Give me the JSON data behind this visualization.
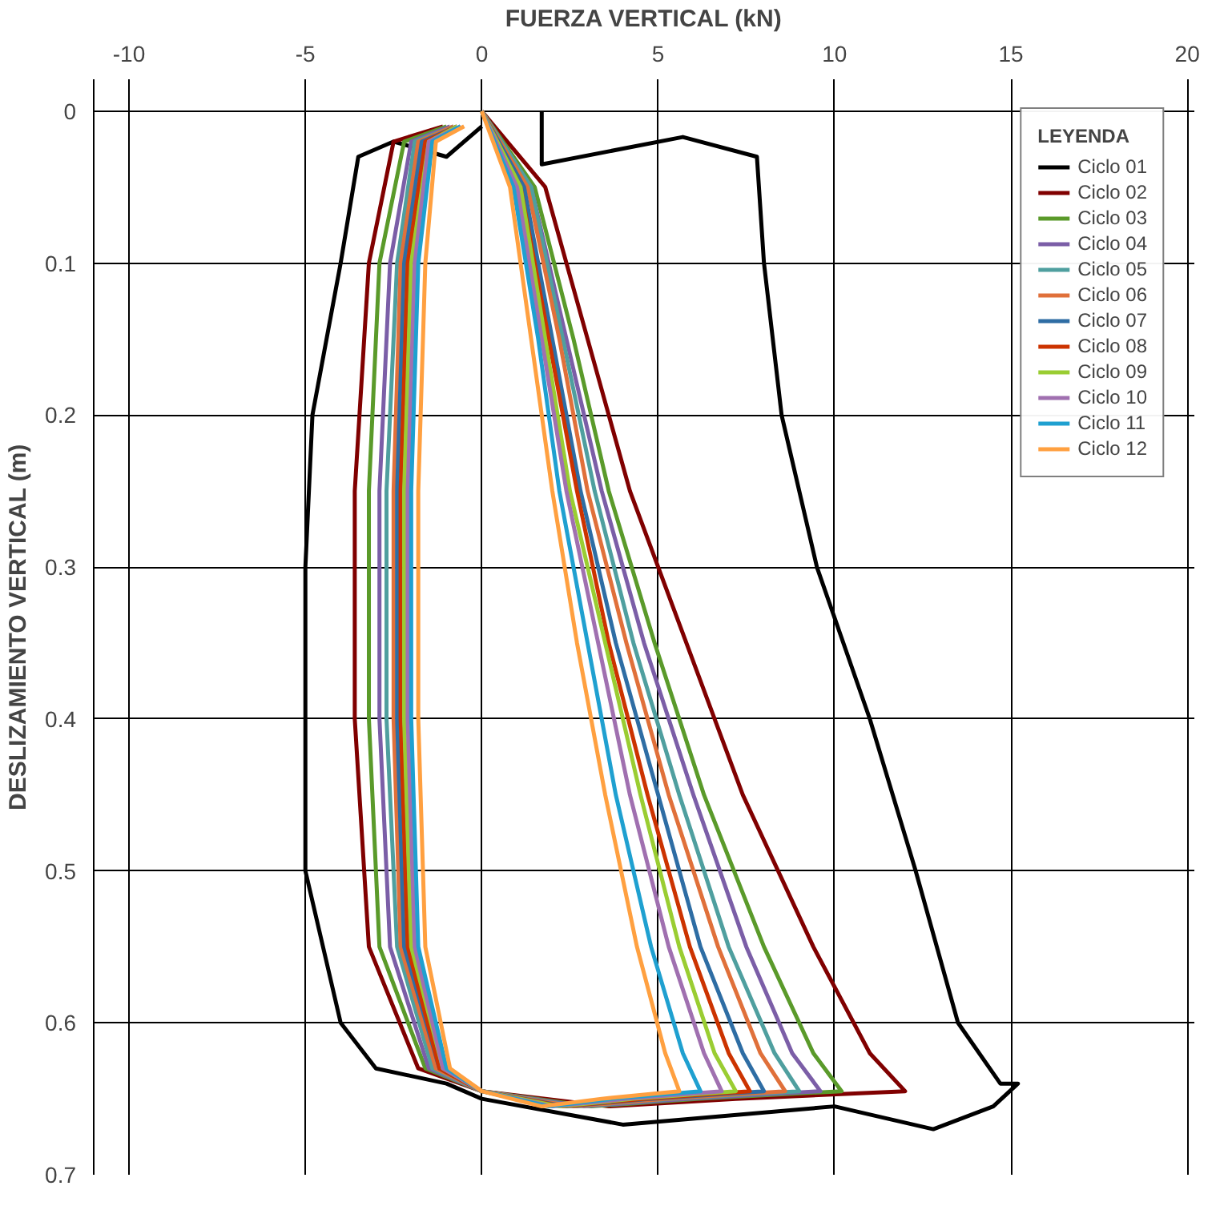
{
  "chart_data": {
    "type": "line",
    "xlabel": "FUERZA VERTICAL (kN)",
    "ylabel": "DESLIZAMIENTO VERTICAL (m)",
    "legend_title": "LEYENDA",
    "xlim": [
      -11,
      20.2
    ],
    "ylim": [
      0.7,
      -0.021
    ],
    "xticks": [
      -10,
      -5,
      0,
      5,
      10,
      15,
      20
    ],
    "yticks": [
      0,
      0.1,
      0.2,
      0.3,
      0.4,
      0.5,
      0.6,
      0.7
    ],
    "grid": true,
    "legend": "top right",
    "line_style": "solid",
    "series": [
      {
        "name": "Ciclo 01",
        "color": "#000000",
        "x": [
          1.7,
          1.7,
          5.7,
          7.8,
          8,
          8.5,
          9.5,
          11,
          12.3,
          13.5,
          14.7,
          15.2,
          14.5,
          12.8,
          10,
          4,
          0,
          -1,
          -3,
          -4,
          -5,
          -5,
          -5,
          -4.8,
          -4,
          -3.5,
          -2.5,
          -1,
          0
        ],
        "values": [
          0,
          0.035,
          0.017,
          0.03,
          0.1,
          0.2,
          0.3,
          0.4,
          0.5,
          0.6,
          0.64,
          0.64,
          0.655,
          0.67,
          0.655,
          0.667,
          0.65,
          0.64,
          0.63,
          0.6,
          0.5,
          0.4,
          0.3,
          0.2,
          0.1,
          0.03,
          0.02,
          0.03,
          0.01
        ]
      },
      {
        "name": "Ciclo 02",
        "color": "#800000",
        "x": [
          0,
          1.8,
          3,
          4.2,
          5.8,
          7.4,
          9.4,
          11,
          12,
          7.2,
          3.6,
          0,
          -1.8,
          -3.2,
          -3.6,
          -3.6,
          -3.2,
          -2.5,
          -1.1
        ],
        "values": [
          0,
          0.05,
          0.15,
          0.25,
          0.35,
          0.45,
          0.55,
          0.62,
          0.645,
          0.65,
          0.655,
          0.645,
          0.63,
          0.55,
          0.4,
          0.25,
          0.1,
          0.02,
          0.01
        ]
      },
      {
        "name": "Ciclo 03",
        "color": "#5a9a2a",
        "x": [
          0,
          1.5,
          2.6,
          3.6,
          4.9,
          6.3,
          8,
          9.4,
          10.2,
          6.1,
          3.1,
          0,
          -1.6,
          -2.9,
          -3.2,
          -3.2,
          -2.9,
          -2.2,
          -1
        ],
        "values": [
          0,
          0.05,
          0.15,
          0.25,
          0.35,
          0.45,
          0.55,
          0.62,
          0.645,
          0.65,
          0.655,
          0.645,
          0.63,
          0.55,
          0.4,
          0.25,
          0.1,
          0.02,
          0.01
        ]
      },
      {
        "name": "Ciclo 04",
        "color": "#7b5ea7",
        "x": [
          0,
          1.4,
          2.4,
          3.4,
          4.6,
          6,
          7.5,
          8.8,
          9.6,
          5.8,
          2.9,
          0,
          -1.5,
          -2.6,
          -2.9,
          -2.9,
          -2.6,
          -2,
          -0.9
        ],
        "values": [
          0,
          0.05,
          0.15,
          0.25,
          0.35,
          0.45,
          0.55,
          0.62,
          0.645,
          0.65,
          0.655,
          0.645,
          0.63,
          0.55,
          0.4,
          0.25,
          0.1,
          0.02,
          0.01
        ]
      },
      {
        "name": "Ciclo 05",
        "color": "#4f9f9f",
        "x": [
          0,
          1.4,
          2.3,
          3.2,
          4.3,
          5.6,
          7,
          8.3,
          9,
          5.4,
          2.7,
          0,
          -1.4,
          -2.4,
          -2.7,
          -2.7,
          -2.4,
          -1.9,
          -0.8
        ],
        "values": [
          0,
          0.05,
          0.15,
          0.25,
          0.35,
          0.45,
          0.55,
          0.62,
          0.645,
          0.65,
          0.655,
          0.645,
          0.63,
          0.55,
          0.4,
          0.25,
          0.1,
          0.02,
          0.01
        ]
      },
      {
        "name": "Ciclo 06",
        "color": "#e0703a",
        "x": [
          0,
          1.3,
          2.2,
          3,
          4.1,
          5.3,
          6.7,
          7.9,
          8.6,
          5.2,
          2.6,
          0,
          -1.3,
          -2.3,
          -2.5,
          -2.5,
          -2.3,
          -1.8,
          -0.8
        ],
        "values": [
          0,
          0.05,
          0.15,
          0.25,
          0.35,
          0.45,
          0.55,
          0.62,
          0.645,
          0.65,
          0.655,
          0.645,
          0.63,
          0.55,
          0.4,
          0.25,
          0.1,
          0.02,
          0.01
        ]
      },
      {
        "name": "Ciclo 07",
        "color": "#2e6da4",
        "x": [
          0,
          1.2,
          2,
          2.8,
          3.8,
          5,
          6.2,
          7.4,
          8,
          4.8,
          2.4,
          0,
          -1.2,
          -2.2,
          -2.4,
          -2.4,
          -2.2,
          -1.7,
          -0.7
        ],
        "values": [
          0,
          0.05,
          0.15,
          0.25,
          0.35,
          0.45,
          0.55,
          0.62,
          0.645,
          0.65,
          0.655,
          0.645,
          0.63,
          0.55,
          0.4,
          0.25,
          0.1,
          0.02,
          0.01
        ]
      },
      {
        "name": "Ciclo 08",
        "color": "#cc3300",
        "x": [
          0,
          1.1,
          1.9,
          2.7,
          3.6,
          4.7,
          5.9,
          7,
          7.6,
          4.6,
          2.3,
          0,
          -1.2,
          -2.1,
          -2.3,
          -2.3,
          -2.1,
          -1.6,
          -0.7
        ],
        "values": [
          0,
          0.05,
          0.15,
          0.25,
          0.35,
          0.45,
          0.55,
          0.62,
          0.645,
          0.65,
          0.655,
          0.645,
          0.63,
          0.55,
          0.4,
          0.25,
          0.1,
          0.02,
          0.01
        ]
      },
      {
        "name": "Ciclo 09",
        "color": "#9acd32",
        "x": [
          0,
          1.1,
          1.8,
          2.5,
          3.5,
          4.5,
          5.6,
          6.6,
          7.2,
          4.3,
          2.2,
          0,
          -1.1,
          -2,
          -2.2,
          -2.2,
          -2,
          -1.5,
          -0.7
        ],
        "values": [
          0,
          0.05,
          0.15,
          0.25,
          0.35,
          0.45,
          0.55,
          0.62,
          0.645,
          0.65,
          0.655,
          0.645,
          0.63,
          0.55,
          0.4,
          0.25,
          0.1,
          0.02,
          0.01
        ]
      },
      {
        "name": "Ciclo 10",
        "color": "#a070b0",
        "x": [
          0,
          1,
          1.7,
          2.4,
          3.3,
          4.2,
          5.3,
          6.3,
          6.8,
          4.1,
          2,
          0,
          -1.1,
          -1.9,
          -2.1,
          -2.1,
          -1.9,
          -1.5,
          -0.6
        ],
        "values": [
          0,
          0.05,
          0.15,
          0.25,
          0.35,
          0.45,
          0.55,
          0.62,
          0.645,
          0.65,
          0.655,
          0.645,
          0.63,
          0.55,
          0.4,
          0.25,
          0.1,
          0.02,
          0.01
        ]
      },
      {
        "name": "Ciclo 11",
        "color": "#1fa0d0",
        "x": [
          0,
          0.9,
          1.6,
          2.2,
          3,
          3.8,
          4.8,
          5.7,
          6.2,
          3.7,
          1.9,
          0,
          -1,
          -1.8,
          -2,
          -2,
          -1.8,
          -1.4,
          -0.6
        ],
        "values": [
          0,
          0.05,
          0.15,
          0.25,
          0.35,
          0.45,
          0.55,
          0.62,
          0.645,
          0.65,
          0.655,
          0.645,
          0.63,
          0.55,
          0.4,
          0.25,
          0.1,
          0.02,
          0.01
        ]
      },
      {
        "name": "Ciclo 12",
        "color": "#ffa040",
        "x": [
          0,
          0.8,
          1.4,
          2,
          2.7,
          3.5,
          4.4,
          5.2,
          5.6,
          3.4,
          1.7,
          0,
          -0.9,
          -1.6,
          -1.8,
          -1.8,
          -1.6,
          -1.3,
          -0.5
        ],
        "values": [
          0,
          0.05,
          0.15,
          0.25,
          0.35,
          0.45,
          0.55,
          0.62,
          0.645,
          0.65,
          0.655,
          0.645,
          0.63,
          0.55,
          0.4,
          0.25,
          0.1,
          0.02,
          0.01
        ]
      }
    ]
  }
}
